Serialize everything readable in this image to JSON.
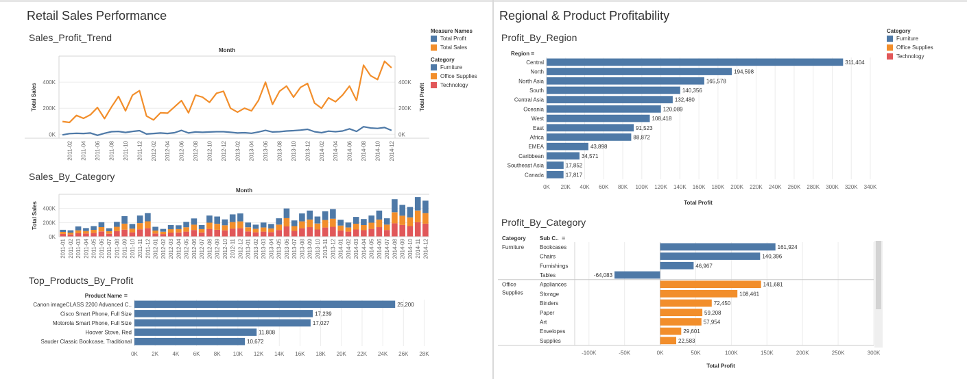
{
  "colors": {
    "furniture": "#4e79a7",
    "office_supplies": "#f28e2b",
    "technology": "#e15759",
    "total_profit": "#4e79a7",
    "total_sales": "#f28e2b"
  },
  "left_dashboard": {
    "title": "Retail Sales Performance",
    "legend_measures": {
      "title": "Measure Names",
      "items": [
        {
          "label": "Total Profit",
          "color": "#4e79a7"
        },
        {
          "label": "Total Sales",
          "color": "#f28e2b"
        }
      ]
    },
    "legend_category": {
      "title": "Category",
      "items": [
        {
          "label": "Furniture",
          "color": "#4e79a7"
        },
        {
          "label": "Office Supplies",
          "color": "#f28e2b"
        },
        {
          "label": "Technology",
          "color": "#e15759"
        }
      ]
    },
    "trend_title": "Sales_Profit_Trend",
    "category_title": "Sales_By_Category",
    "products_title": "Top_Products_By_Profit"
  },
  "right_dashboard": {
    "title": "Regional & Product Profitability",
    "legend_category": {
      "title": "Category",
      "items": [
        {
          "label": "Furniture",
          "color": "#4e79a7"
        },
        {
          "label": "Office Supplies",
          "color": "#f28e2b"
        },
        {
          "label": "Technology",
          "color": "#e15759"
        }
      ]
    },
    "region_title": "Profit_By_Region",
    "pcat_title": "Profit_By_Category"
  },
  "chart_data": [
    {
      "id": "sales_profit_trend",
      "type": "line",
      "header": "Month",
      "ylabel_left": "Total Sales",
      "ylabel_right": "Total Profit",
      "y_ticks": [
        0,
        200000,
        400000
      ],
      "y_tick_labels": [
        "0K",
        "200K",
        "400K"
      ],
      "ylim": [
        -30000,
        600000
      ],
      "x": [
        "2011-01",
        "2011-02",
        "2011-03",
        "2011-04",
        "2011-05",
        "2011-06",
        "2011-07",
        "2011-08",
        "2011-09",
        "2011-10",
        "2011-11",
        "2011-12",
        "2012-01",
        "2012-02",
        "2012-03",
        "2012-04",
        "2012-05",
        "2012-06",
        "2012-07",
        "2012-08",
        "2012-09",
        "2012-10",
        "2012-11",
        "2012-12",
        "2013-01",
        "2013-02",
        "2013-03",
        "2013-04",
        "2013-05",
        "2013-06",
        "2013-07",
        "2013-08",
        "2013-09",
        "2013-10",
        "2013-11",
        "2013-12",
        "2014-01",
        "2014-02",
        "2014-03",
        "2014-04",
        "2014-05",
        "2014-06",
        "2014-07",
        "2014-08",
        "2014-09",
        "2014-10",
        "2014-11",
        "2014-12"
      ],
      "x_tick_labels": [
        "2011-02",
        "2011-04",
        "2011-06",
        "2011-08",
        "2011-10",
        "2011-12",
        "2012-02",
        "2012-04",
        "2012-06",
        "2012-08",
        "2012-10",
        "2012-12",
        "2013-02",
        "2013-04",
        "2013-06",
        "2013-08",
        "2013-10",
        "2013-12",
        "2014-02",
        "2014-04",
        "2014-06",
        "2014-08",
        "2014-10",
        "2014-12"
      ],
      "series": [
        {
          "name": "Total Sales",
          "color": "#f28e2b",
          "values": [
            98000,
            91000,
            145000,
            122000,
            150000,
            205000,
            120000,
            210000,
            290000,
            180000,
            300000,
            335000,
            140000,
            110000,
            165000,
            162000,
            210000,
            258000,
            165000,
            300000,
            285000,
            245000,
            315000,
            330000,
            200000,
            170000,
            200000,
            180000,
            260000,
            400000,
            230000,
            330000,
            370000,
            285000,
            360000,
            390000,
            240000,
            200000,
            280000,
            250000,
            300000,
            370000,
            260000,
            530000,
            450000,
            420000,
            560000,
            510000
          ]
        },
        {
          "name": "Total Profit",
          "color": "#4e79a7",
          "values": [
            -5000,
            5000,
            8000,
            6000,
            10000,
            -8000,
            8000,
            20000,
            22000,
            14000,
            22000,
            28000,
            2000,
            6000,
            10000,
            6000,
            12000,
            30000,
            10000,
            18000,
            15000,
            18000,
            20000,
            20000,
            15000,
            10000,
            12000,
            8000,
            18000,
            30000,
            18000,
            20000,
            25000,
            28000,
            32000,
            38000,
            20000,
            12000,
            24000,
            20000,
            25000,
            42000,
            22000,
            58000,
            48000,
            45000,
            52000,
            30000
          ]
        }
      ]
    },
    {
      "id": "sales_by_category",
      "type": "bar",
      "stacked": true,
      "header": "Month",
      "ylabel": "Total Sales",
      "y_ticks": [
        0,
        200000,
        400000
      ],
      "y_tick_labels": [
        "0K",
        "200K",
        "400K"
      ],
      "ylim": [
        0,
        600000
      ],
      "categories": [
        "2011-01",
        "2011-02",
        "2011-03",
        "2011-04",
        "2011-05",
        "2011-06",
        "2011-07",
        "2011-08",
        "2011-09",
        "2011-10",
        "2011-11",
        "2011-12",
        "2012-01",
        "2012-02",
        "2012-03",
        "2012-04",
        "2012-05",
        "2012-06",
        "2012-07",
        "2012-08",
        "2012-09",
        "2012-10",
        "2012-11",
        "2012-12",
        "2013-01",
        "2013-02",
        "2013-03",
        "2013-04",
        "2013-05",
        "2013-06",
        "2013-07",
        "2013-08",
        "2013-09",
        "2013-10",
        "2013-11",
        "2013-12",
        "2014-01",
        "2014-02",
        "2014-03",
        "2014-04",
        "2014-05",
        "2014-06",
        "2014-07",
        "2014-08",
        "2014-09",
        "2014-10",
        "2014-11",
        "2014-12"
      ],
      "series": [
        {
          "name": "Technology",
          "color": "#e15759",
          "values": [
            40000,
            32000,
            48000,
            45000,
            52000,
            75000,
            42000,
            78000,
            100000,
            62000,
            105000,
            120000,
            45000,
            38000,
            58000,
            60000,
            72000,
            95000,
            60000,
            110000,
            98000,
            90000,
            115000,
            120000,
            75000,
            62000,
            72000,
            65000,
            95000,
            145000,
            82000,
            120000,
            135000,
            102000,
            130000,
            140000,
            88000,
            72000,
            102000,
            92000,
            110000,
            135000,
            95000,
            190000,
            165000,
            150000,
            205000,
            185000
          ]
        },
        {
          "name": "Office Supplies",
          "color": "#f28e2b",
          "values": [
            28000,
            26000,
            42000,
            35000,
            45000,
            60000,
            35000,
            62000,
            85000,
            52000,
            88000,
            98000,
            42000,
            32000,
            48000,
            48000,
            62000,
            75000,
            48000,
            88000,
            84000,
            72000,
            92000,
            97000,
            58000,
            50000,
            58000,
            52000,
            76000,
            118000,
            68000,
            97000,
            108000,
            84000,
            106000,
            115000,
            70000,
            58000,
            82000,
            73000,
            88000,
            108000,
            76000,
            155000,
            132000,
            124000,
            165000,
            150000
          ]
        },
        {
          "name": "Furniture",
          "color": "#4e79a7",
          "values": [
            30000,
            33000,
            55000,
            42000,
            53000,
            70000,
            43000,
            70000,
            105000,
            66000,
            107000,
            117000,
            53000,
            40000,
            59000,
            54000,
            76000,
            88000,
            57000,
            102000,
            103000,
            83000,
            108000,
            113000,
            67000,
            58000,
            70000,
            63000,
            89000,
            137000,
            80000,
            113000,
            127000,
            99000,
            124000,
            135000,
            82000,
            70000,
            96000,
            85000,
            102000,
            127000,
            89000,
            185000,
            153000,
            146000,
            190000,
            175000
          ]
        }
      ]
    },
    {
      "id": "top_products_by_profit",
      "type": "bar",
      "orientation": "horizontal",
      "field_label": "Product Name",
      "categories": [
        "Canon imageCLASS 2200 Advanced C..",
        "Cisco Smart Phone, Full Size",
        "Motorola Smart Phone, Full Size",
        "Hoover Stove, Red",
        "Sauder Classic Bookcase, Traditional"
      ],
      "values": [
        25200,
        17239,
        17027,
        11808,
        10672
      ],
      "value_labels": [
        "25,200",
        "17,239",
        "17,027",
        "11,808",
        "10,672"
      ],
      "x_ticks": [
        0,
        2000,
        4000,
        6000,
        8000,
        10000,
        12000,
        14000,
        16000,
        18000,
        20000,
        22000,
        24000,
        26000,
        28000
      ],
      "x_tick_labels": [
        "0K",
        "2K",
        "4K",
        "6K",
        "8K",
        "10K",
        "12K",
        "14K",
        "16K",
        "18K",
        "20K",
        "22K",
        "24K",
        "26K",
        "28K"
      ],
      "xlim": [
        0,
        28500
      ],
      "color": "#4e79a7"
    },
    {
      "id": "profit_by_region",
      "type": "bar",
      "orientation": "horizontal",
      "field_label": "Region",
      "xlabel": "Total Profit",
      "categories": [
        "Central",
        "North",
        "North Asia",
        "South",
        "Central Asia",
        "Oceania",
        "West",
        "East",
        "Africa",
        "EMEA",
        "Caribbean",
        "Southeast Asia",
        "Canada"
      ],
      "values": [
        311404,
        194598,
        165578,
        140356,
        132480,
        120089,
        108418,
        91523,
        88872,
        43898,
        34571,
        17852,
        17817
      ],
      "value_labels": [
        "311,404",
        "194,598",
        "165,578",
        "140,356",
        "132,480",
        "120,089",
        "108,418",
        "91,523",
        "88,872",
        "43,898",
        "34,571",
        "17,852",
        "17,817"
      ],
      "x_ticks": [
        0,
        20000,
        40000,
        60000,
        80000,
        100000,
        120000,
        140000,
        160000,
        180000,
        200000,
        220000,
        240000,
        260000,
        280000,
        300000,
        320000,
        340000
      ],
      "x_tick_labels": [
        "0K",
        "20K",
        "40K",
        "60K",
        "80K",
        "100K",
        "120K",
        "140K",
        "160K",
        "180K",
        "200K",
        "220K",
        "240K",
        "260K",
        "280K",
        "300K",
        "320K",
        "340K"
      ],
      "xlim": [
        0,
        340000
      ],
      "color": "#4e79a7"
    },
    {
      "id": "profit_by_category",
      "type": "bar",
      "orientation": "horizontal",
      "col_headers": [
        "Category",
        "Sub C.."
      ],
      "xlabel": "Total Profit",
      "groups": [
        {
          "category": [
            "Furniture"
          ],
          "color": "#4e79a7",
          "items": [
            {
              "sub": "Bookcases",
              "value": 161924,
              "label": "161,924"
            },
            {
              "sub": "Chairs",
              "value": 140396,
              "label": "140,396"
            },
            {
              "sub": "Furnishings",
              "value": 46967,
              "label": "46,967"
            },
            {
              "sub": "Tables",
              "value": -64083,
              "label": "-64,083"
            }
          ]
        },
        {
          "category": [
            "Office",
            "Supplies"
          ],
          "color": "#f28e2b",
          "items": [
            {
              "sub": "Appliances",
              "value": 141681,
              "label": "141,681"
            },
            {
              "sub": "Storage",
              "value": 108461,
              "label": "108,461"
            },
            {
              "sub": "Binders",
              "value": 72450,
              "label": "72,450"
            },
            {
              "sub": "Paper",
              "value": 59208,
              "label": "59,208"
            },
            {
              "sub": "Art",
              "value": 57954,
              "label": "57,954"
            },
            {
              "sub": "Envelopes",
              "value": 29601,
              "label": "29,601"
            },
            {
              "sub": "Supplies",
              "value": 22583,
              "label": "22,583"
            }
          ]
        }
      ],
      "x_ticks": [
        -100000,
        -50000,
        0,
        50000,
        100000,
        150000,
        200000,
        250000,
        300000
      ],
      "x_tick_labels": [
        "-100K",
        "-50K",
        "0K",
        "50K",
        "100K",
        "150K",
        "200K",
        "250K",
        "300K"
      ],
      "xlim": [
        -120000,
        300000
      ]
    }
  ]
}
